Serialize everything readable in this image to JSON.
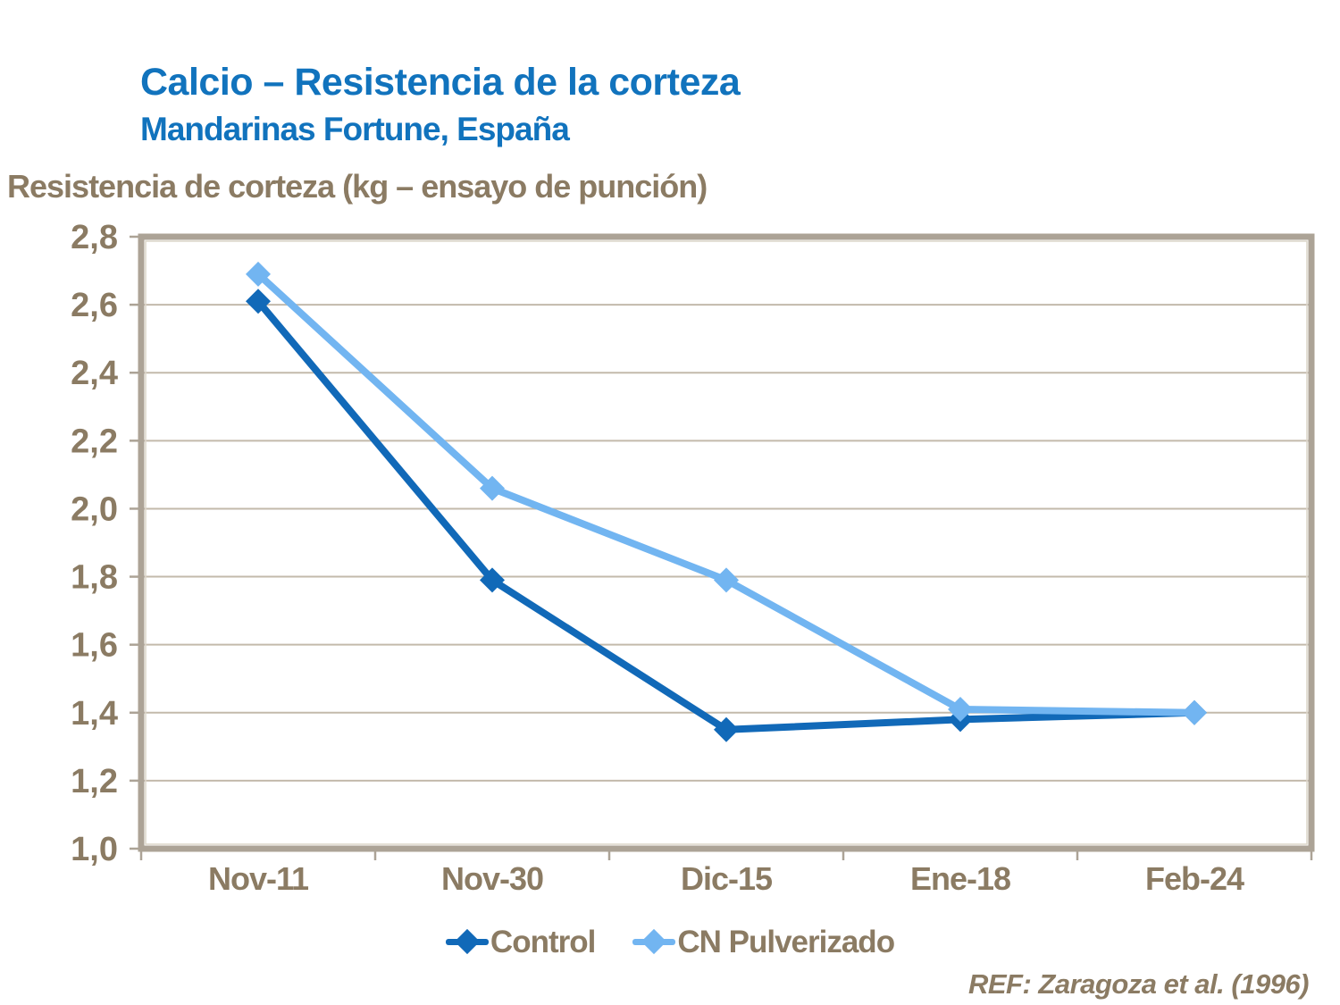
{
  "header": {
    "title": "Calcio – Resistencia de la corteza",
    "subtitle": "Mandarinas Fortune, España",
    "title_color": "#1173BD"
  },
  "chart_data": {
    "type": "line",
    "axis_title": "Resistencia de corteza (kg – ensayo de punción)",
    "categories": [
      "Nov-11",
      "Nov-30",
      "Dic-15",
      "Ene-18",
      "Feb-24"
    ],
    "series": [
      {
        "name": "Control",
        "color": "#1169B8",
        "values": [
          2.61,
          1.79,
          1.35,
          1.38,
          1.4
        ]
      },
      {
        "name": "CN Pulverizado",
        "color": "#72B5F1",
        "values": [
          2.69,
          2.06,
          1.79,
          1.41,
          1.4
        ]
      }
    ],
    "ylim": [
      1.0,
      2.8
    ],
    "ytick_step": 0.2,
    "ytick_labels": [
      "2,8",
      "2,6",
      "2,4",
      "2,2",
      "2,0",
      "1,8",
      "1,6",
      "1,4",
      "1,2",
      "1,0"
    ],
    "grid": true,
    "legend_position": "bottom",
    "marker": "diamond",
    "colors": {
      "gridline": "#C3BAAB",
      "axis_border": "#ACA396",
      "axis_border_highlight": "#DCD5C9",
      "tick_label": "#8B7B63"
    }
  },
  "footer": {
    "ref": "REF: Zaragoza et al. (1996)"
  }
}
